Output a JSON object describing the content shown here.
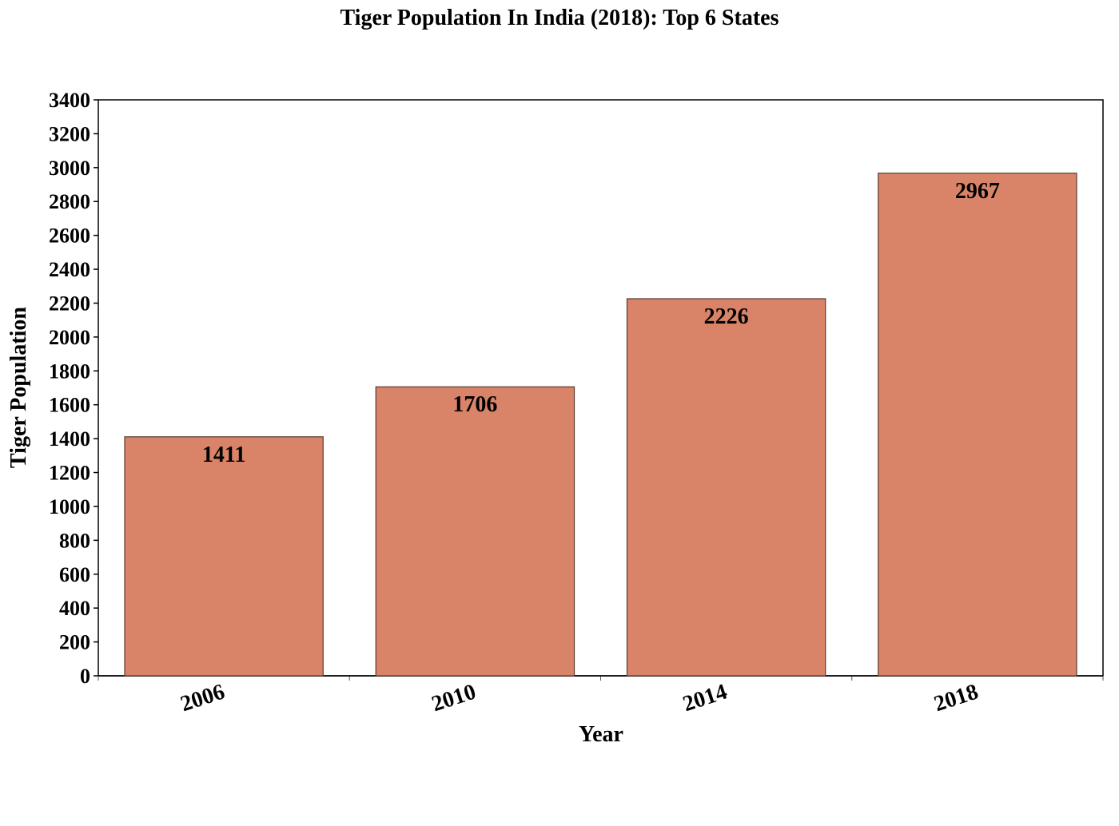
{
  "chart_data": {
    "type": "bar",
    "title": "Tiger Population In India (2018): Top 6 States",
    "xlabel": "Year",
    "ylabel": "Tiger Population",
    "categories": [
      "2006",
      "2010",
      "2014",
      "2018"
    ],
    "values": [
      1411,
      1706,
      2226,
      2967
    ],
    "data_labels": [
      "1411",
      "1706",
      "2226",
      "2967"
    ],
    "ylim": [
      0,
      3400
    ],
    "yticks": [
      "0",
      "200",
      "400",
      "600",
      "800",
      "1000",
      "1200",
      "1400",
      "1600",
      "1800",
      "2000",
      "2200",
      "2400",
      "2600",
      "2800",
      "3000",
      "3200",
      "3400"
    ],
    "grid": false,
    "legend": "none",
    "bar_color": "#D98468",
    "bar_edge_color": "#5a3a30"
  }
}
